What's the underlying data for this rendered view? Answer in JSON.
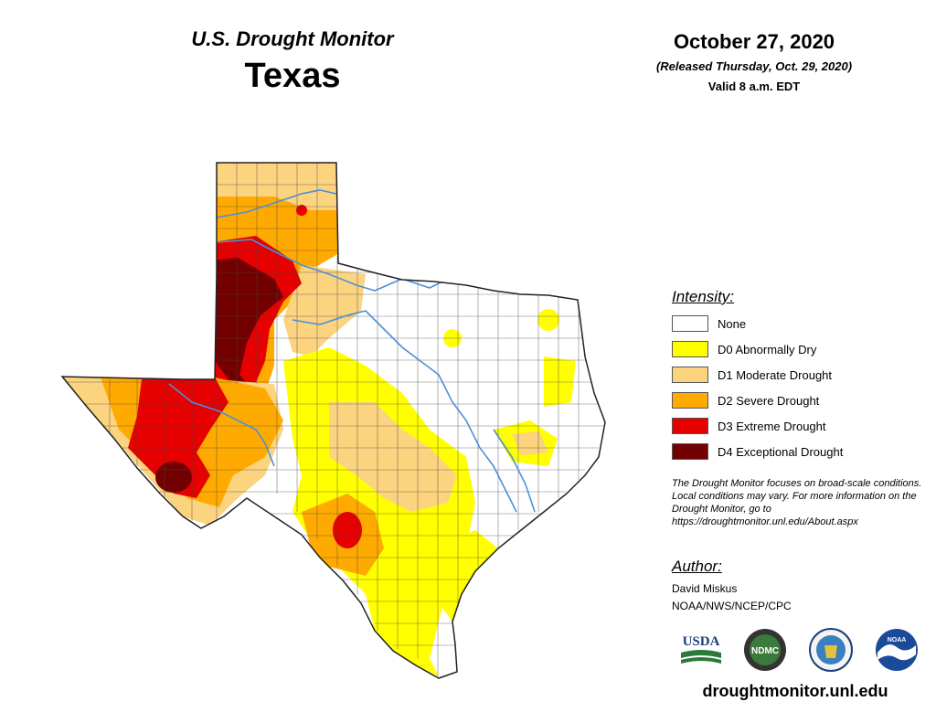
{
  "header": {
    "subtitle": "U.S. Drought Monitor",
    "title": "Texas",
    "date": "October 27, 2020",
    "released": "(Released Thursday, Oct. 29, 2020)",
    "valid": "Valid 8 a.m. EDT"
  },
  "legend": {
    "title": "Intensity:",
    "items": [
      {
        "label": "None",
        "color": "#ffffff"
      },
      {
        "label": "D0 Abnormally Dry",
        "color": "#ffff00"
      },
      {
        "label": "D1 Moderate Drought",
        "color": "#fcd37f"
      },
      {
        "label": "D2 Severe Drought",
        "color": "#ffaa00"
      },
      {
        "label": "D3 Extreme Drought",
        "color": "#e60000"
      },
      {
        "label": "D4 Exceptional Drought",
        "color": "#730000"
      }
    ]
  },
  "note": "The Drought Monitor focuses on broad-scale conditions. Local conditions may vary. For more information on the Drought Monitor, go to https://droughtmonitor.unl.edu/About.aspx",
  "author": {
    "title": "Author:",
    "name": "David Miskus",
    "org": "NOAA/NWS/NCEP/CPC"
  },
  "logos": [
    {
      "name": "usda-logo",
      "text": "USDA"
    },
    {
      "name": "ndmc-logo",
      "text": "NDMC"
    },
    {
      "name": "doc-seal-logo",
      "text": ""
    },
    {
      "name": "noaa-logo",
      "text": "NOAA"
    }
  ],
  "website": "droughtmonitor.unl.edu",
  "colors": {
    "river": "#4a90d9",
    "county_line": "#444444"
  }
}
